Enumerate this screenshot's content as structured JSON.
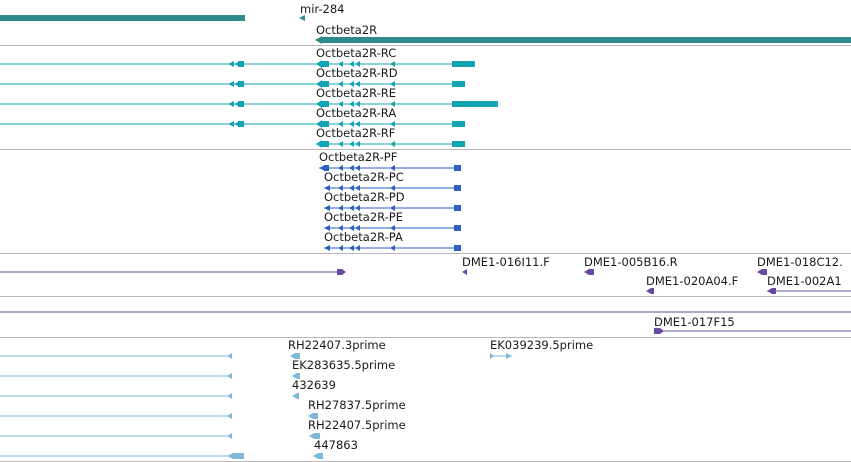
{
  "colors": {
    "gene": "#2e8b8b",
    "transcript_rna": "#13a4b4",
    "transcript_protein": "#2f5fc0",
    "clone": "#6a4aa0",
    "est": "#7fb8d8",
    "separator": "#b8b8b8"
  },
  "tracks": {
    "mirna": {
      "label": "mir-284"
    },
    "gene": {
      "label": "Octbeta2R"
    },
    "transcripts": [
      {
        "label": "Octbeta2R-RC"
      },
      {
        "label": "Octbeta2R-RD"
      },
      {
        "label": "Octbeta2R-RE"
      },
      {
        "label": "Octbeta2R-RA"
      },
      {
        "label": "Octbeta2R-RF"
      }
    ],
    "proteins": [
      {
        "label": "Octbeta2R-PF"
      },
      {
        "label": "Octbeta2R-PC"
      },
      {
        "label": "Octbeta2R-PD"
      },
      {
        "label": "Octbeta2R-PE"
      },
      {
        "label": "Octbeta2R-PA"
      }
    ],
    "clones": [
      {
        "label": "DME1-016I11.F"
      },
      {
        "label": "DME1-005B16.R"
      },
      {
        "label": "DME1-018C12."
      },
      {
        "label": "DME1-020A04.F"
      },
      {
        "label": "DME1-002A1"
      }
    ],
    "clone2": {
      "label": "DME1-017F15"
    },
    "ests": [
      {
        "label": "RH22407.3prime"
      },
      {
        "label": "EK039239.5prime"
      },
      {
        "label": "EK283635.5prime"
      },
      {
        "label": "432639"
      },
      {
        "label": "RH27837.5prime"
      },
      {
        "label": "RH22407.5prime"
      },
      {
        "label": "447863"
      }
    ]
  }
}
